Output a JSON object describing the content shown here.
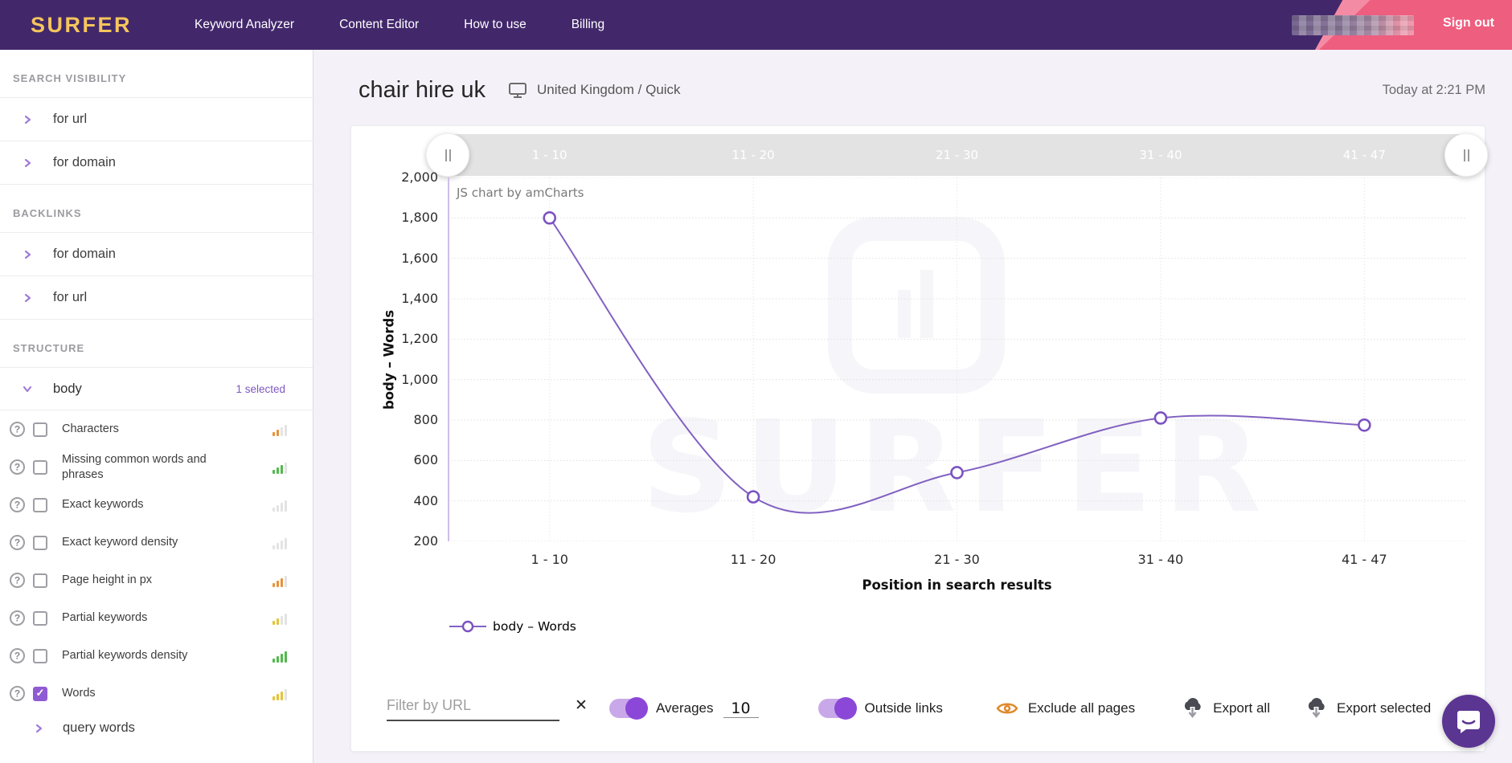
{
  "navbar": {
    "logo": "SURFER",
    "items": [
      "Keyword Analyzer",
      "Content Editor",
      "How to use",
      "Billing"
    ],
    "sign_out": "Sign out"
  },
  "sidebar": {
    "sections": [
      {
        "title": "SEARCH VISIBILITY",
        "links": [
          "for url",
          "for domain"
        ]
      },
      {
        "title": "BACKLINKS",
        "links": [
          "for domain",
          "for url"
        ]
      }
    ],
    "structure": {
      "title": "STRUCTURE",
      "group": "body",
      "selected_note": "1 selected",
      "metrics": [
        {
          "label": "Characters",
          "checked": false,
          "bar_color": "orange",
          "bars_lit": 2
        },
        {
          "label": "Missing common words and phrases",
          "checked": false,
          "bar_color": "green",
          "bars_lit": 3
        },
        {
          "label": "Exact keywords",
          "checked": false,
          "bar_color": "gray",
          "bars_lit": 0
        },
        {
          "label": "Exact keyword density",
          "checked": false,
          "bar_color": "gray",
          "bars_lit": 0
        },
        {
          "label": "Page height in px",
          "checked": false,
          "bar_color": "orange",
          "bars_lit": 3
        },
        {
          "label": "Partial keywords",
          "checked": false,
          "bar_color": "yellow",
          "bars_lit": 2
        },
        {
          "label": "Partial keywords density",
          "checked": false,
          "bar_color": "green",
          "bars_lit": 4
        },
        {
          "label": "Words",
          "checked": true,
          "bar_color": "yellow",
          "bars_lit": 3
        }
      ],
      "sub_link": "query words"
    }
  },
  "main": {
    "title": "chair hire uk",
    "locale": "United Kingdom / Quick",
    "timestamp": "Today at 2:21 PM"
  },
  "chart_data": {
    "type": "line",
    "categories": [
      "1 - 10",
      "11 - 20",
      "21 - 30",
      "31 - 40",
      "41 - 47"
    ],
    "series": [
      {
        "name": "body – Words",
        "values": [
          1800,
          420,
          540,
          810,
          775
        ]
      }
    ],
    "title": "",
    "xlabel": "Position in search results",
    "ylabel": "body – Words",
    "ylim": [
      200,
      2000
    ],
    "ytick_step": 200,
    "grid": true,
    "legend_position": "bottom-left",
    "watermark": "JS chart by amCharts",
    "background_watermark": "SURFER",
    "line_color": "#8161C1",
    "marker_style": "open-circle"
  },
  "controls": {
    "filter_placeholder": "Filter by URL",
    "averages_label": "Averages",
    "averages_value": "10",
    "averages_on": true,
    "outside_links_label": "Outside links",
    "outside_links_on": true,
    "exclude_label": "Exclude all pages",
    "export_all_label": "Export all",
    "export_selected_label": "Export selected"
  },
  "colors": {
    "navbar": "#42286B",
    "logo": "#F6C55C",
    "pink": "#EE5E7F",
    "accent_purple": "#8F5BD3",
    "toggle_track": "#C9A8E9",
    "toggle_knob": "#8B48D8",
    "eye_orange": "#E08A2E",
    "bar_palette": {
      "orange": "#E8923A",
      "green": "#53B94E",
      "yellow": "#E4C438",
      "gray": "#E0E0E0"
    },
    "bar_dim": "#E3E3E3"
  }
}
